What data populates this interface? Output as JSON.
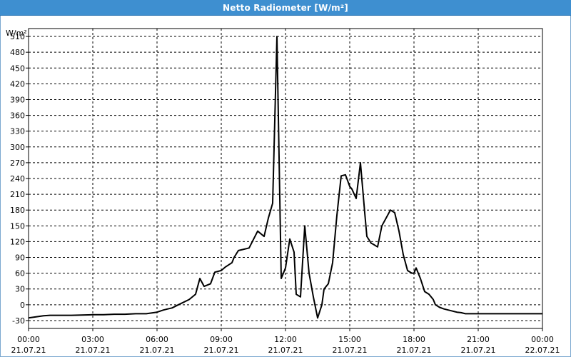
{
  "window": {
    "title": "Netto Radiometer [W/m²]"
  },
  "chart_data": {
    "type": "line",
    "title": "Netto Radiometer [W/m²]",
    "ylabel": "W/m²",
    "xlabel": "",
    "ylim": [
      -45,
      525
    ],
    "yticks": [
      -30,
      0,
      30,
      60,
      90,
      120,
      150,
      180,
      210,
      240,
      270,
      300,
      330,
      360,
      390,
      420,
      450,
      480,
      510
    ],
    "ytick_labels": [
      "-30",
      "0",
      "30",
      "60",
      "90",
      "120",
      "150",
      "180",
      "210",
      "240",
      "270",
      "300",
      "330",
      "360",
      "390",
      "420",
      "450",
      "480",
      "510"
    ],
    "xlim": [
      0,
      24
    ],
    "xticks": [
      0,
      3,
      6,
      9,
      12,
      15,
      18,
      21,
      24
    ],
    "xtick_labels": [
      [
        "00:00",
        "21.07.21"
      ],
      [
        "03:00",
        "21.07.21"
      ],
      [
        "06:00",
        "21.07.21"
      ],
      [
        "09:00",
        "21.07.21"
      ],
      [
        "12:00",
        "21.07.21"
      ],
      [
        "15:00",
        "21.07.21"
      ],
      [
        "18:00",
        "21.07.21"
      ],
      [
        "21:00",
        "21.07.21"
      ],
      [
        "00:00",
        "22.07.21"
      ]
    ],
    "grid": true,
    "line_color": "#000000",
    "series": [
      {
        "x": [
          0,
          0.7,
          1,
          2,
          3,
          3.5,
          4,
          4.5,
          5,
          5.5,
          6,
          6.3,
          6.5,
          6.7,
          7,
          7.5,
          7.8,
          8,
          8.2,
          8.5,
          8.7,
          9,
          9.2,
          9.5,
          9.6,
          9.8,
          10,
          10.3,
          10.7,
          11,
          11.2,
          11.4,
          11.6,
          11.8,
          12,
          12.2,
          12.4,
          12.5,
          12.7,
          12.9,
          13.1,
          13.3,
          13.5,
          13.7,
          13.8,
          14,
          14.2,
          14.4,
          14.6,
          14.8,
          15,
          15.1,
          15.3,
          15.5,
          15.7,
          15.8,
          16,
          16.1,
          16.3,
          16.5,
          16.7,
          16.9,
          17.1,
          17.3,
          17.5,
          17.7,
          17.9,
          18,
          18.1,
          18.3,
          18.5,
          18.7,
          18.8,
          18.9,
          19,
          19.2,
          19.4,
          19.6,
          19.8,
          20,
          20.2,
          20.4,
          20.6,
          20.8,
          21,
          22,
          23,
          24
        ],
        "y": [
          -25,
          -21,
          -20,
          -20,
          -19,
          -19,
          -18,
          -18,
          -17,
          -17,
          -14,
          -10,
          -8,
          -6,
          0,
          10,
          20,
          50,
          35,
          40,
          62,
          65,
          72,
          80,
          90,
          103,
          105,
          108,
          140,
          130,
          165,
          193,
          510,
          50,
          70,
          125,
          100,
          20,
          15,
          150,
          60,
          15,
          -25,
          0,
          30,
          40,
          80,
          170,
          245,
          247,
          225,
          220,
          202,
          270,
          175,
          130,
          117,
          115,
          110,
          150,
          165,
          180,
          175,
          140,
          95,
          65,
          60,
          60,
          70,
          50,
          25,
          20,
          15,
          10,
          0,
          -5,
          -8,
          -10,
          -12,
          -14,
          -15,
          -17,
          -17,
          -17,
          -17,
          -17,
          -17,
          -17
        ]
      }
    ]
  }
}
